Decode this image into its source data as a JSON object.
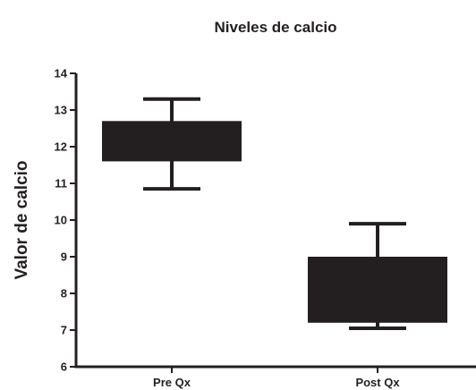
{
  "chart_data": {
    "type": "box",
    "title": "Niveles de calcio",
    "xlabel": "",
    "ylabel": "Valor de calcio",
    "ylim": [
      6,
      14
    ],
    "yticks": [
      6,
      7,
      8,
      9,
      10,
      11,
      12,
      13,
      14
    ],
    "categories": [
      "Pre Qx",
      "Post Qx"
    ],
    "boxes": [
      {
        "category": "Pre Qx",
        "whisker_low": 10.85,
        "q1": 11.6,
        "q3": 12.7,
        "whisker_high": 13.3
      },
      {
        "category": "Post Qx",
        "whisker_low": 7.05,
        "q1": 7.2,
        "q3": 9.0,
        "whisker_high": 9.9
      }
    ],
    "color": "#231f20",
    "grid": false,
    "legend": "none"
  }
}
